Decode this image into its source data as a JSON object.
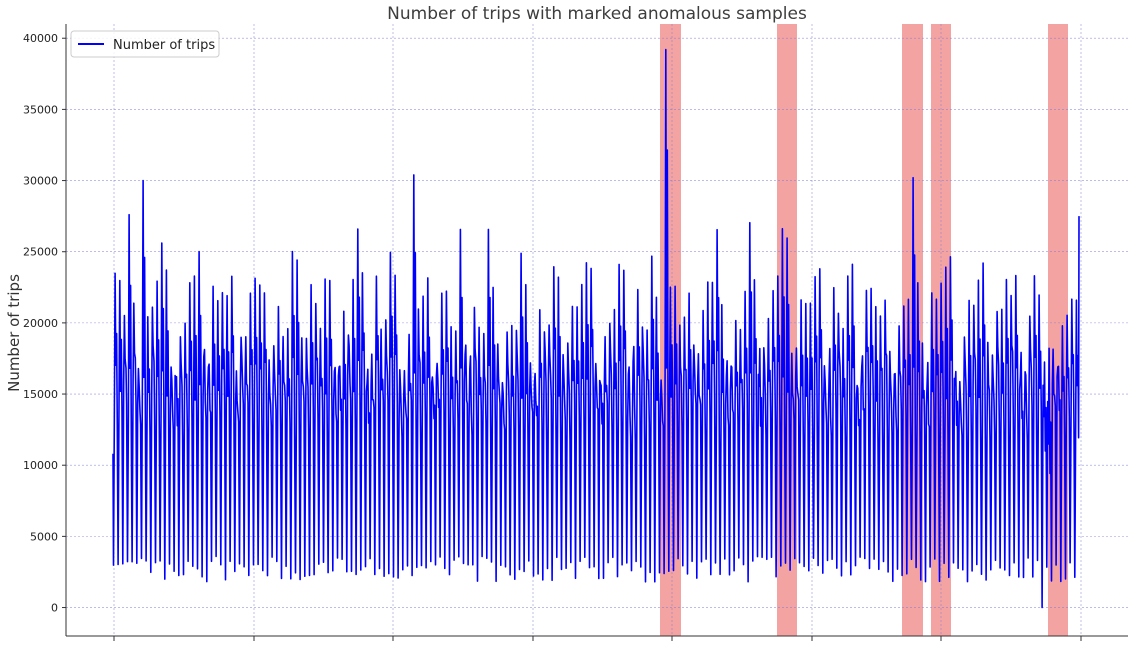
{
  "chart_data": {
    "type": "line",
    "title": "Number of trips with marked anomalous samples",
    "xlabel": "",
    "ylabel": "Number of trips",
    "ylim": [
      -2000,
      41000
    ],
    "y_ticks": [
      0,
      5000,
      10000,
      15000,
      20000,
      25000,
      30000,
      35000,
      40000
    ],
    "y_tick_labels": [
      "0",
      "5000",
      "10000",
      "15000",
      "20000",
      "25000",
      "30000",
      "35000",
      "40000"
    ],
    "x_tick_labels": [
      "",
      "",
      "",
      "",
      "",
      "",
      "",
      ""
    ],
    "grid": true,
    "legend_position": "top-left",
    "series": [
      {
        "name": "Number of trips",
        "color": "#0000ff",
        "pattern": "daily oscillation between night lows (~1500-3500) and daytime highs (~17000-30000); 207 daily cycles",
        "notable_values": {
          "start": 10800,
          "max_peak": 39200,
          "other_spikes": [
            30000,
            30400,
            30300
          ],
          "min": 0,
          "end": 27500
        }
      }
    ],
    "anomaly_regions_color": "#f4a3a3"
  }
}
